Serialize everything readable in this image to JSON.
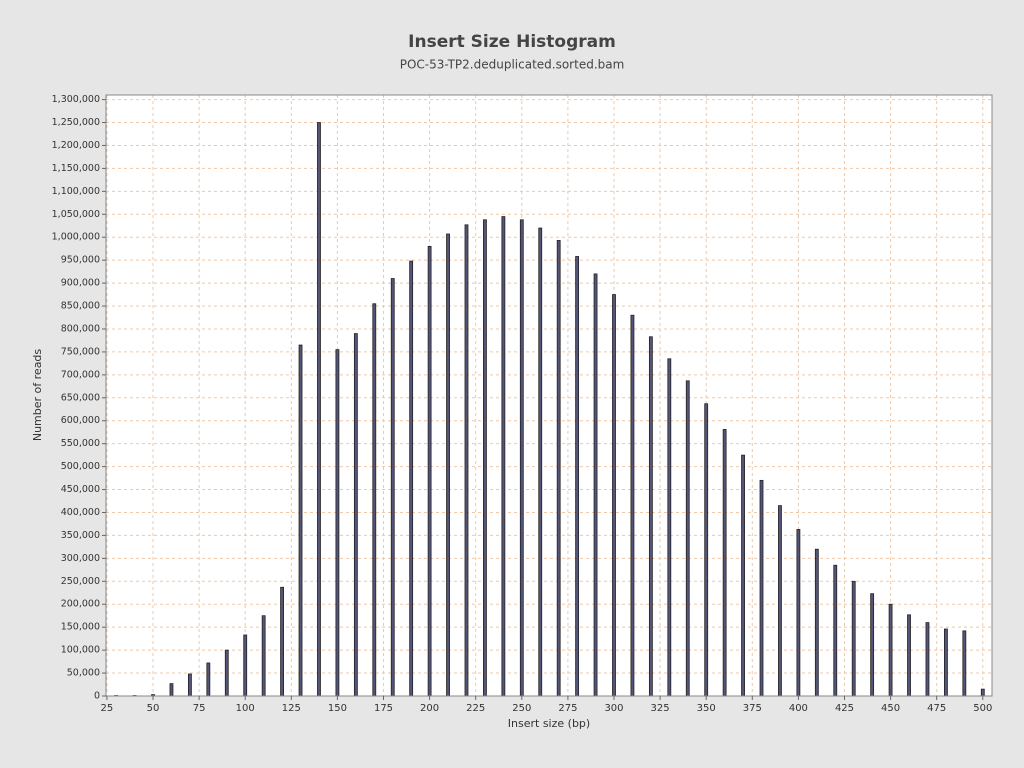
{
  "chart_data": {
    "type": "bar",
    "title": "Insert Size Histogram",
    "subtitle": "POC-53-TP2.deduplicated.sorted.bam",
    "x_label": "Insert size (bp)",
    "y_label": "Number of reads",
    "x": [
      30,
      40,
      50,
      60,
      70,
      80,
      90,
      100,
      110,
      120,
      130,
      140,
      150,
      160,
      170,
      180,
      190,
      200,
      210,
      220,
      230,
      240,
      250,
      260,
      270,
      280,
      290,
      300,
      310,
      320,
      330,
      340,
      350,
      360,
      370,
      380,
      390,
      400,
      410,
      420,
      430,
      440,
      450,
      460,
      470,
      480,
      490,
      500
    ],
    "values": [
      1000,
      1000,
      3000,
      27000,
      48000,
      72000,
      100000,
      133000,
      175000,
      237000,
      765000,
      1250000,
      755000,
      790000,
      855000,
      910000,
      948000,
      980000,
      1007000,
      1027000,
      1038000,
      1045000,
      1038000,
      1020000,
      993000,
      958000,
      920000,
      875000,
      830000,
      783000,
      735000,
      687000,
      637000,
      581000,
      525000,
      470000,
      415000,
      363000,
      320000,
      285000,
      250000,
      223000,
      200000,
      177000,
      160000,
      146000,
      142000,
      15000
    ],
    "color": "#55557a",
    "xlim": [
      24.5,
      505
    ],
    "ylim": [
      0,
      1310000
    ],
    "xticks": [
      25,
      50,
      75,
      100,
      125,
      150,
      175,
      200,
      225,
      250,
      275,
      300,
      325,
      350,
      375,
      400,
      425,
      450,
      475,
      500
    ],
    "yticks": [
      0,
      {
        "value": 50000,
        "label": "50,000"
      },
      {
        "value": 100000,
        "label": "100,000"
      },
      {
        "value": 150000,
        "label": "150,000"
      },
      {
        "value": 200000,
        "label": "200,000"
      },
      {
        "value": 250000,
        "label": "250,000"
      },
      {
        "value": 300000,
        "label": "300,000"
      },
      {
        "value": 350000,
        "label": "350,000"
      },
      {
        "value": 400000,
        "label": "400,000"
      },
      {
        "value": 450000,
        "label": "450,000"
      },
      {
        "value": 500000,
        "label": "500,000"
      },
      {
        "value": 550000,
        "label": "550,000"
      },
      {
        "value": 600000,
        "label": "600,000"
      },
      {
        "value": 650000,
        "label": "650,000"
      },
      {
        "value": 700000,
        "label": "700,000"
      },
      {
        "value": 750000,
        "label": "750,000"
      },
      {
        "value": 800000,
        "label": "800,000"
      },
      {
        "value": 850000,
        "label": "850,000"
      },
      {
        "value": 900000,
        "label": "900,000"
      },
      {
        "value": 950000,
        "label": "950,000"
      },
      {
        "value": 1000000,
        "label": "1,000,000"
      },
      {
        "value": 1050000,
        "label": "1,050,000"
      },
      {
        "value": 1100000,
        "label": "1,100,000"
      },
      {
        "value": 1150000,
        "label": "1,150,000"
      },
      {
        "value": 1200000,
        "label": "1,200,000"
      },
      {
        "value": 1250000,
        "label": "1,250,000"
      },
      {
        "value": 1300000,
        "label": "1,300,000"
      }
    ],
    "grid": true
  }
}
